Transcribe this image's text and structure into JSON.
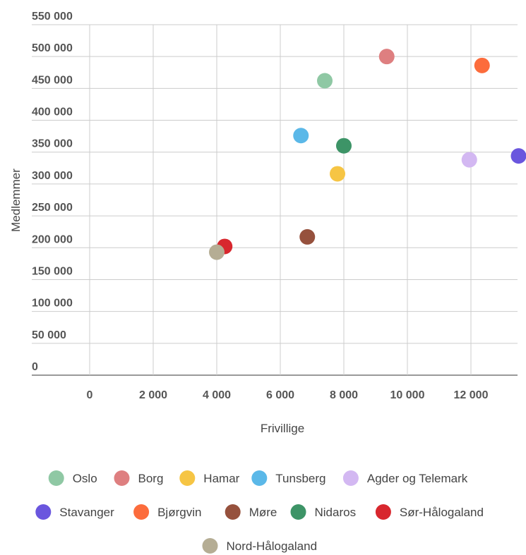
{
  "chart_data": {
    "type": "scatter",
    "title": "",
    "xlabel": "Frivillige",
    "ylabel": "Medlemmer",
    "xlim": [
      0,
      13500
    ],
    "ylim": [
      0,
      550000
    ],
    "x_ticks": [
      "0",
      "2 000",
      "4 000",
      "6 000",
      "8 000",
      "10 000",
      "12 000"
    ],
    "x_tick_values": [
      0,
      2000,
      4000,
      6000,
      8000,
      10000,
      12000
    ],
    "y_ticks": [
      "0",
      "50 000",
      "100 000",
      "150 000",
      "200 000",
      "250 000",
      "300 000",
      "350 000",
      "400 000",
      "450 000",
      "500 000",
      "550 000"
    ],
    "y_tick_values": [
      0,
      50000,
      100000,
      150000,
      200000,
      250000,
      300000,
      350000,
      400000,
      450000,
      500000,
      550000
    ],
    "grid": true,
    "legend_position": "bottom",
    "series": [
      {
        "name": "Oslo",
        "color": "#8fc8a4",
        "x": 7400,
        "y": 462000
      },
      {
        "name": "Borg",
        "color": "#de7f80",
        "x": 9350,
        "y": 500000
      },
      {
        "name": "Hamar",
        "color": "#f6c544",
        "x": 7800,
        "y": 316000
      },
      {
        "name": "Tunsberg",
        "color": "#5bb8e8",
        "x": 6650,
        "y": 376000
      },
      {
        "name": "Agder og Telemark",
        "color": "#d3b8f2",
        "x": 11950,
        "y": 338000
      },
      {
        "name": "Stavanger",
        "color": "#6a56de",
        "x": 13500,
        "y": 344000
      },
      {
        "name": "Bjørgvin",
        "color": "#fc6c3c",
        "x": 12350,
        "y": 486000
      },
      {
        "name": "Møre",
        "color": "#96513d",
        "x": 6850,
        "y": 217000
      },
      {
        "name": "Nidaros",
        "color": "#3d9467",
        "x": 8000,
        "y": 360000
      },
      {
        "name": "Sør-Hålogaland",
        "color": "#d8272e",
        "x": 4250,
        "y": 202000
      },
      {
        "name": "Nord-Hålogaland",
        "color": "#b5ad94",
        "x": 4000,
        "y": 193000
      }
    ]
  }
}
